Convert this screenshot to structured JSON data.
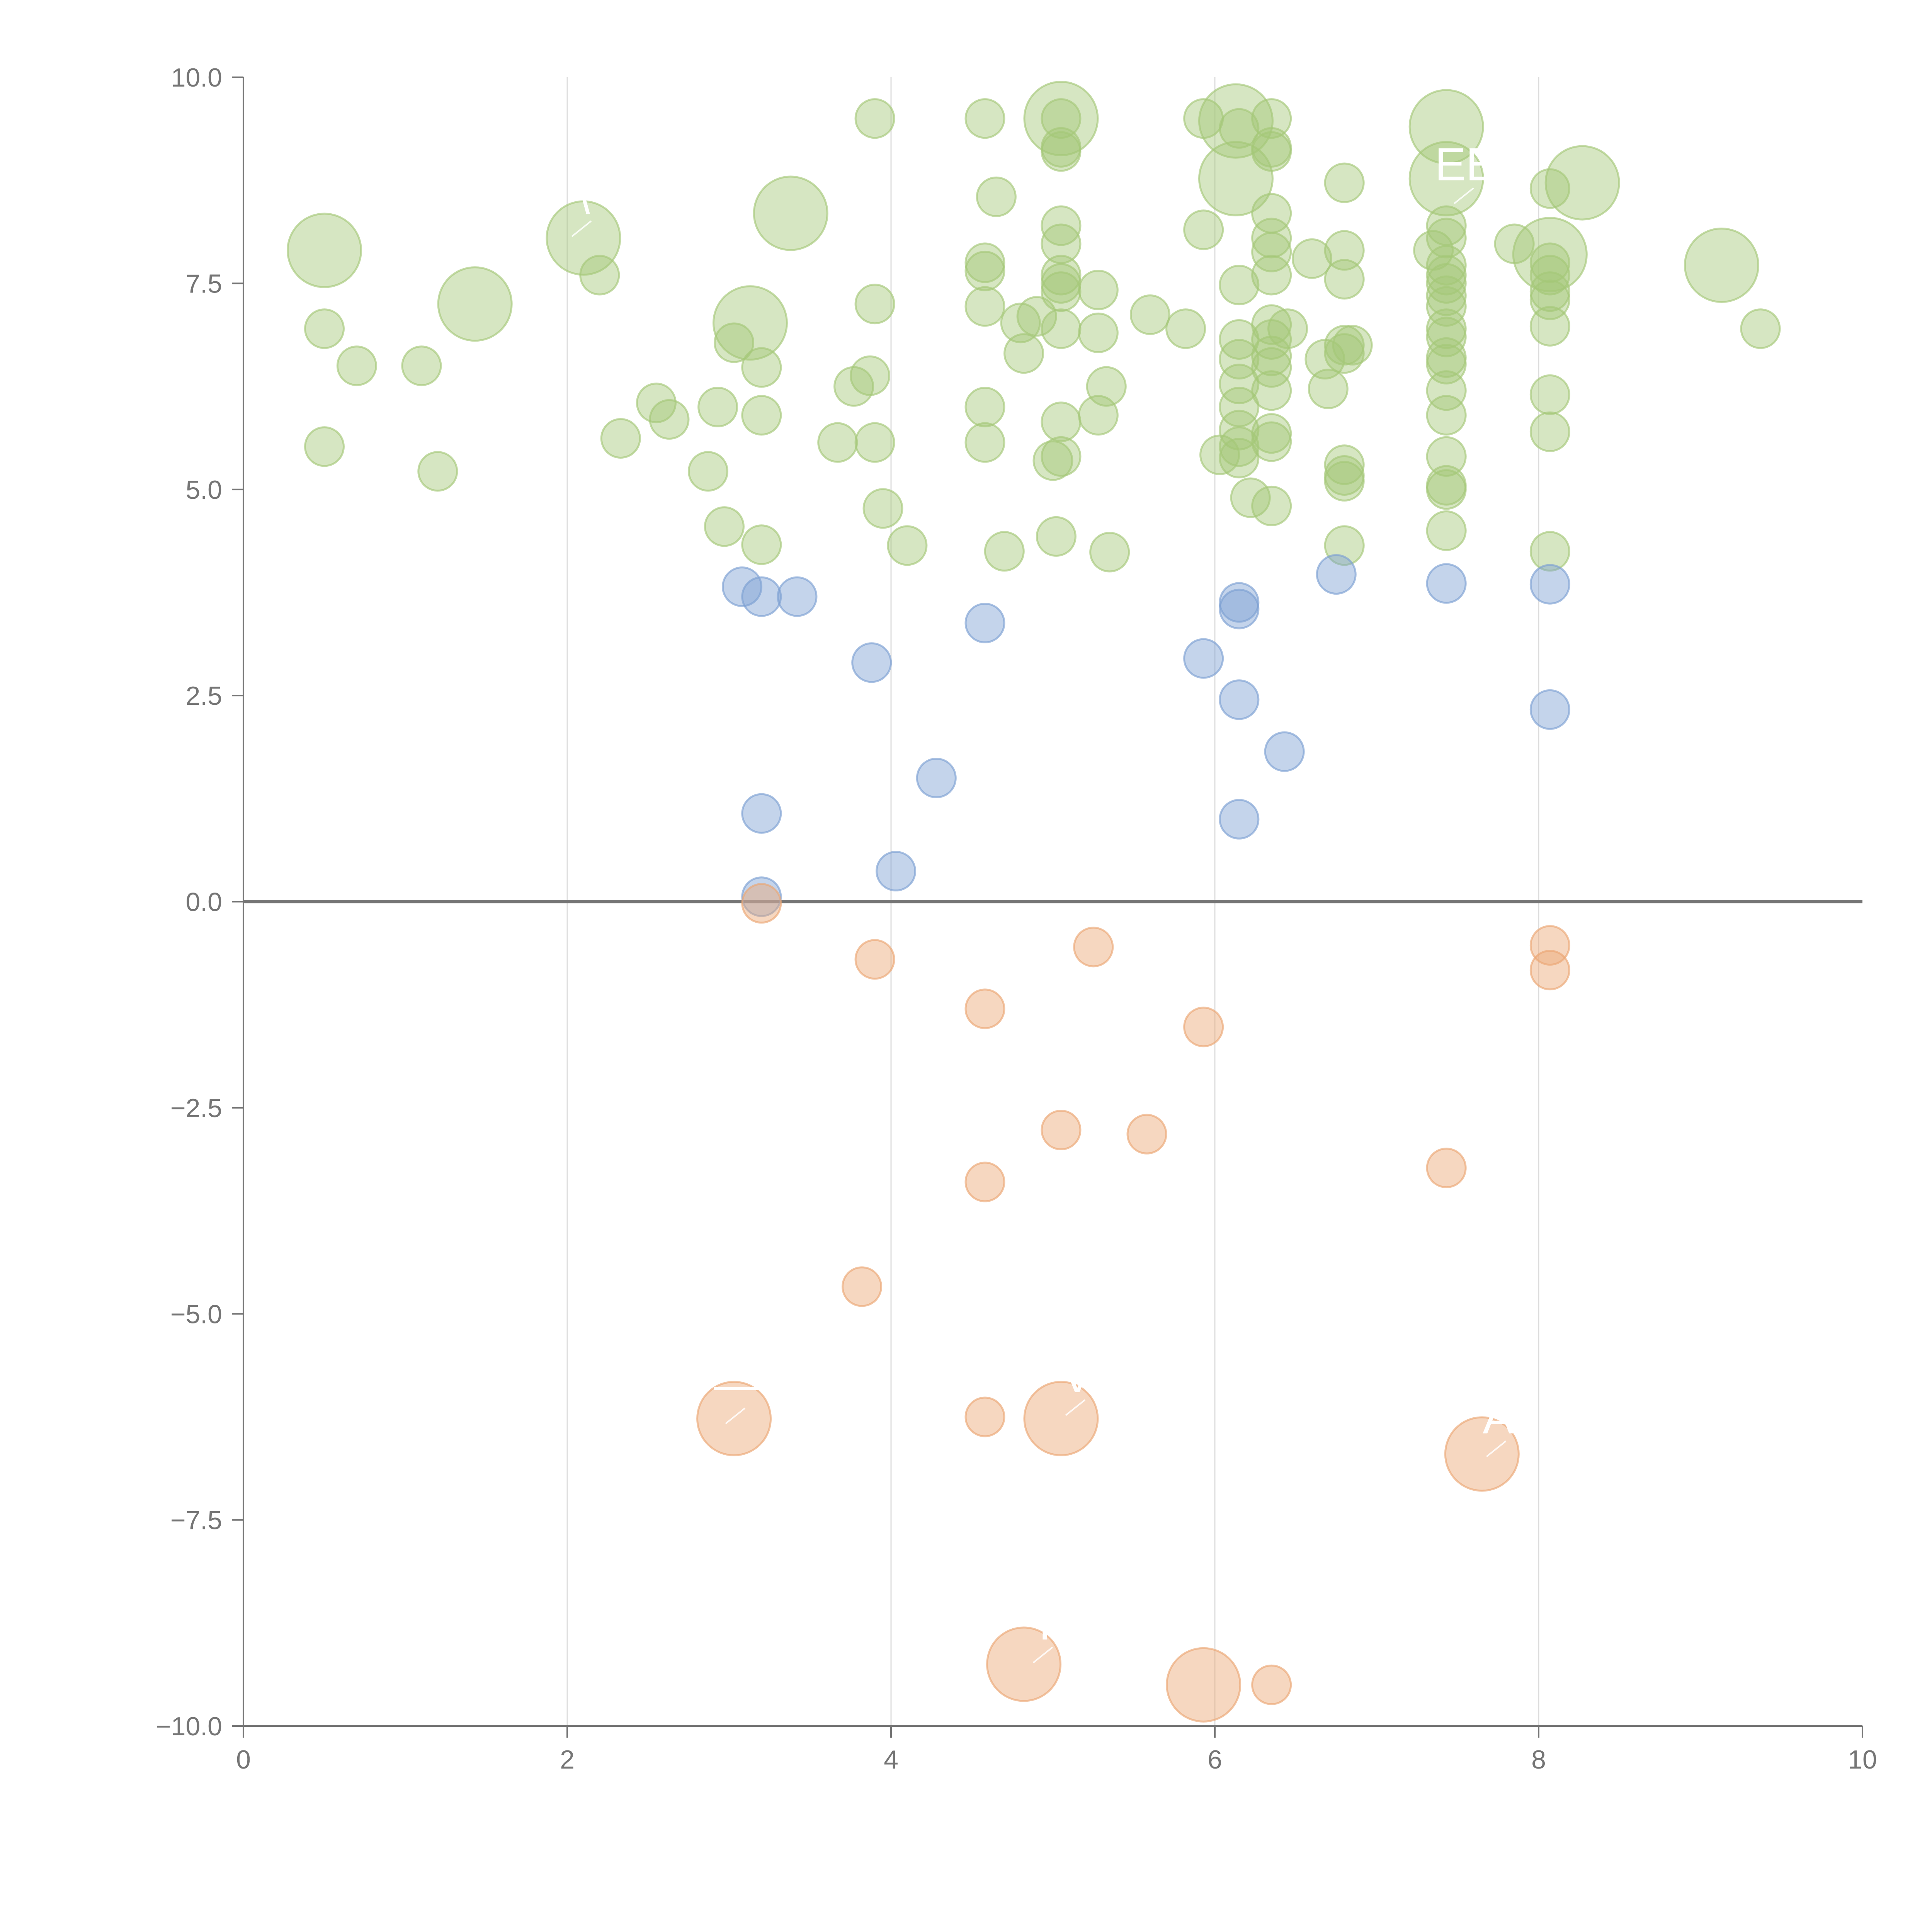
{
  "chart_data": {
    "type": "scatter",
    "title": "",
    "xlabel": "",
    "ylabel": "",
    "xlim": [
      0,
      10
    ],
    "ylim": [
      -10,
      10
    ],
    "x_ticks": [
      "0",
      "2",
      "4",
      "6",
      "8",
      "10"
    ],
    "y_ticks": [
      "10.0",
      "7.5",
      "5.0",
      "2.5",
      "0.0",
      "−2.5",
      "−5.0",
      "−7.5",
      "−10.0"
    ],
    "grid": "vertical lines at x ticks",
    "legend": "none",
    "colors": {
      "high": "#a5c778",
      "low_positive": "#7d9fd2",
      "negative": "#eba673",
      "axis": "#757575",
      "grid": "#dddddd"
    },
    "points_high": [
      [
        0.5,
        7.9,
        2
      ],
      [
        0.5,
        6.95,
        1
      ],
      [
        0.5,
        5.52,
        1
      ],
      [
        0.7,
        6.5,
        1
      ],
      [
        1.1,
        6.5,
        1
      ],
      [
        1.2,
        5.22,
        1
      ],
      [
        1.43,
        7.25,
        2
      ],
      [
        2.1,
        8.05,
        2
      ],
      [
        2.2,
        7.6,
        1
      ],
      [
        2.33,
        5.62,
        1
      ],
      [
        2.55,
        6.05,
        1
      ],
      [
        2.63,
        5.85,
        1
      ],
      [
        2.87,
        5.22,
        1
      ],
      [
        2.93,
        6.0,
        1
      ],
      [
        2.97,
        4.55,
        1
      ],
      [
        3.03,
        6.78,
        1
      ],
      [
        3.13,
        7.02,
        2
      ],
      [
        3.2,
        6.48,
        1
      ],
      [
        3.2,
        5.9,
        1
      ],
      [
        3.2,
        4.33,
        1
      ],
      [
        3.38,
        8.35,
        2
      ],
      [
        3.67,
        5.57,
        1
      ],
      [
        3.77,
        6.25,
        1
      ],
      [
        3.87,
        6.38,
        1
      ],
      [
        3.9,
        9.5,
        1
      ],
      [
        3.9,
        7.25,
        1
      ],
      [
        3.9,
        5.57,
        1
      ],
      [
        3.95,
        4.77,
        1
      ],
      [
        4.1,
        4.32,
        1
      ],
      [
        4.58,
        9.5,
        1
      ],
      [
        4.58,
        7.75,
        1
      ],
      [
        4.58,
        7.65,
        1
      ],
      [
        4.58,
        7.22,
        1
      ],
      [
        4.58,
        6.0,
        1
      ],
      [
        4.58,
        5.57,
        1
      ],
      [
        4.65,
        8.55,
        1
      ],
      [
        4.7,
        4.25,
        1
      ],
      [
        4.8,
        7.02,
        1
      ],
      [
        4.82,
        6.65,
        1
      ],
      [
        4.9,
        7.1,
        1
      ],
      [
        5.0,
        5.35,
        1
      ],
      [
        5.02,
        4.43,
        1
      ],
      [
        5.05,
        9.5,
        2
      ],
      [
        5.05,
        9.5,
        1
      ],
      [
        5.05,
        9.15,
        1
      ],
      [
        5.05,
        9.1,
        1
      ],
      [
        5.05,
        8.2,
        1
      ],
      [
        5.05,
        7.98,
        1
      ],
      [
        5.05,
        7.6,
        1
      ],
      [
        5.05,
        7.5,
        1
      ],
      [
        5.05,
        7.4,
        1
      ],
      [
        5.05,
        6.95,
        1
      ],
      [
        5.05,
        5.82,
        1
      ],
      [
        5.05,
        5.4,
        1
      ],
      [
        5.28,
        7.42,
        1
      ],
      [
        5.28,
        6.9,
        1
      ],
      [
        5.28,
        5.9,
        1
      ],
      [
        5.33,
        6.25,
        1
      ],
      [
        5.35,
        4.24,
        1
      ],
      [
        5.6,
        7.12,
        1
      ],
      [
        5.82,
        6.95,
        1
      ],
      [
        5.93,
        9.5,
        1
      ],
      [
        5.93,
        8.15,
        1
      ],
      [
        6.03,
        5.42,
        1
      ],
      [
        6.13,
        9.47,
        2
      ],
      [
        6.13,
        8.77,
        2
      ],
      [
        6.15,
        9.38,
        1
      ],
      [
        6.15,
        7.48,
        1
      ],
      [
        6.15,
        6.82,
        1
      ],
      [
        6.15,
        6.58,
        1
      ],
      [
        6.15,
        6.28,
        1
      ],
      [
        6.15,
        6.0,
        1
      ],
      [
        6.15,
        5.72,
        1
      ],
      [
        6.15,
        5.52,
        1
      ],
      [
        6.15,
        5.38,
        1
      ],
      [
        6.22,
        4.9,
        1
      ],
      [
        6.35,
        9.5,
        1
      ],
      [
        6.35,
        9.15,
        1
      ],
      [
        6.35,
        9.1,
        1
      ],
      [
        6.35,
        8.35,
        1
      ],
      [
        6.35,
        8.05,
        1
      ],
      [
        6.35,
        7.88,
        1
      ],
      [
        6.35,
        7.6,
        1
      ],
      [
        6.35,
        7.0,
        1
      ],
      [
        6.35,
        6.82,
        1
      ],
      [
        6.35,
        6.62,
        1
      ],
      [
        6.35,
        6.48,
        1
      ],
      [
        6.35,
        6.2,
        1
      ],
      [
        6.35,
        5.68,
        1
      ],
      [
        6.35,
        5.58,
        1
      ],
      [
        6.35,
        4.8,
        1
      ],
      [
        6.45,
        6.95,
        1
      ],
      [
        6.6,
        7.8,
        1
      ],
      [
        6.68,
        6.58,
        1
      ],
      [
        6.7,
        6.22,
        1
      ],
      [
        6.8,
        8.72,
        1
      ],
      [
        6.8,
        7.9,
        1
      ],
      [
        6.8,
        7.55,
        1
      ],
      [
        6.8,
        6.75,
        1
      ],
      [
        6.8,
        6.65,
        1
      ],
      [
        6.8,
        5.3,
        1
      ],
      [
        6.8,
        5.17,
        1
      ],
      [
        6.8,
        5.1,
        1
      ],
      [
        6.8,
        4.32,
        1
      ],
      [
        6.85,
        6.75,
        1
      ],
      [
        7.35,
        7.9,
        1
      ],
      [
        7.43,
        9.4,
        2
      ],
      [
        7.43,
        8.77,
        2
      ],
      [
        7.43,
        8.2,
        1
      ],
      [
        7.43,
        8.05,
        1
      ],
      [
        7.43,
        7.72,
        1
      ],
      [
        7.43,
        7.6,
        1
      ],
      [
        7.43,
        7.5,
        1
      ],
      [
        7.43,
        7.35,
        1
      ],
      [
        7.43,
        7.22,
        1
      ],
      [
        7.43,
        6.95,
        1
      ],
      [
        7.43,
        6.85,
        1
      ],
      [
        7.43,
        6.6,
        1
      ],
      [
        7.43,
        6.52,
        1
      ],
      [
        7.43,
        6.2,
        1
      ],
      [
        7.43,
        5.9,
        1
      ],
      [
        7.43,
        5.4,
        1
      ],
      [
        7.43,
        5.05,
        1
      ],
      [
        7.43,
        5.0,
        1
      ],
      [
        7.43,
        4.5,
        1
      ],
      [
        7.85,
        7.98,
        1
      ],
      [
        8.07,
        7.85,
        2
      ],
      [
        8.07,
        8.65,
        1
      ],
      [
        8.07,
        7.75,
        1
      ],
      [
        8.07,
        7.6,
        1
      ],
      [
        8.07,
        7.4,
        1
      ],
      [
        8.07,
        7.3,
        1
      ],
      [
        8.07,
        6.98,
        1
      ],
      [
        8.07,
        6.15,
        1
      ],
      [
        8.07,
        5.7,
        1
      ],
      [
        8.07,
        4.25,
        1
      ],
      [
        8.27,
        8.72,
        2
      ],
      [
        9.13,
        7.72,
        2
      ],
      [
        9.37,
        6.95,
        1
      ]
    ],
    "points_low_positive": [
      [
        3.08,
        3.82,
        1
      ],
      [
        3.2,
        3.7,
        1
      ],
      [
        3.42,
        3.7,
        1
      ],
      [
        3.88,
        2.9,
        1
      ],
      [
        4.58,
        3.38,
        1
      ],
      [
        4.28,
        1.5,
        1
      ],
      [
        3.2,
        1.07,
        1
      ],
      [
        3.2,
        0.06,
        1
      ],
      [
        4.03,
        0.37,
        1
      ],
      [
        5.93,
        2.95,
        1
      ],
      [
        6.15,
        3.63,
        1
      ],
      [
        6.15,
        3.55,
        1
      ],
      [
        6.15,
        2.45,
        1
      ],
      [
        6.43,
        1.82,
        1
      ],
      [
        6.15,
        1.0,
        1
      ],
      [
        6.75,
        3.97,
        1
      ],
      [
        7.43,
        3.86,
        1
      ],
      [
        8.07,
        3.85,
        1
      ],
      [
        8.07,
        2.33,
        1
      ]
    ],
    "points_negative": [
      [
        3.2,
        -0.02,
        1
      ],
      [
        3.9,
        -0.7,
        1
      ],
      [
        4.58,
        -1.3,
        1
      ],
      [
        5.25,
        -0.55,
        1
      ],
      [
        5.93,
        -1.52,
        1
      ],
      [
        8.07,
        -0.53,
        1
      ],
      [
        8.07,
        -0.83,
        1
      ],
      [
        5.05,
        -2.77,
        1
      ],
      [
        5.58,
        -2.82,
        1
      ],
      [
        4.58,
        -3.4,
        1
      ],
      [
        7.43,
        -3.23,
        1
      ],
      [
        3.82,
        -4.67,
        1
      ],
      [
        3.03,
        -6.27,
        2
      ],
      [
        4.58,
        -6.25,
        1
      ],
      [
        5.05,
        -6.27,
        2
      ],
      [
        7.65,
        -6.7,
        2
      ],
      [
        4.82,
        -9.25,
        2
      ],
      [
        5.93,
        -9.5,
        2
      ],
      [
        6.35,
        -9.5,
        1
      ]
    ],
    "annotations": [
      {
        "text": "—",
        "x": 3.05,
        "y": -6.05
      },
      {
        "text": "V",
        "x": 5.15,
        "y": -5.95
      },
      {
        "text": "A",
        "x": 7.75,
        "y": -6.45
      },
      {
        "text": "I",
        "x": 4.95,
        "y": -8.95
      },
      {
        "text": "EE",
        "x": 7.55,
        "y": 8.75
      },
      {
        "text": "\\",
        "x": 2.1,
        "y": 8.35
      }
    ]
  }
}
